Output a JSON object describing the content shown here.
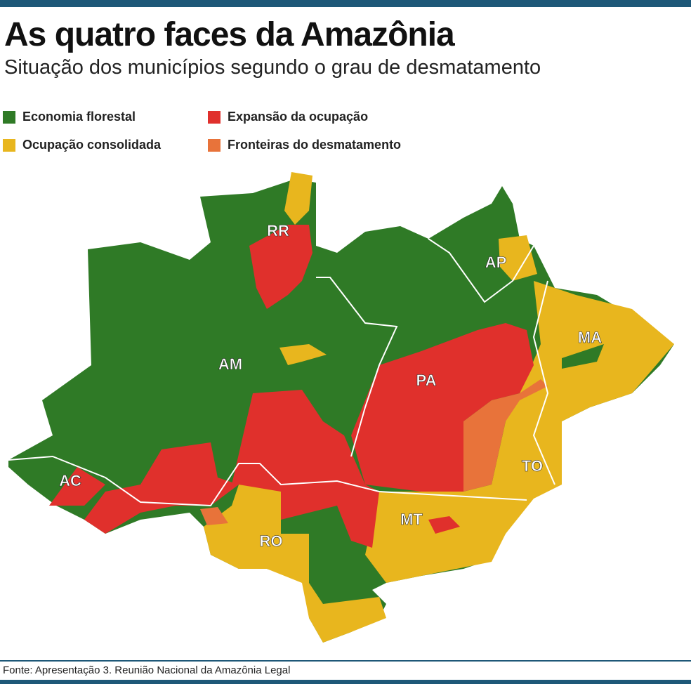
{
  "header": {
    "title": "As quatro faces da Amazônia",
    "subtitle": "Situação dos municípios segundo o grau de desmatamento"
  },
  "legend": [
    {
      "label": "Economia florestal",
      "color": "#2f7a26"
    },
    {
      "label": "Expansão da ocupação",
      "color": "#e0302c"
    },
    {
      "label": "Ocupação consolidada",
      "color": "#e8b61e"
    },
    {
      "label": "Fronteiras do desmatamento",
      "color": "#e8733a"
    }
  ],
  "map": {
    "labels": [
      "RR",
      "AP",
      "AM",
      "PA",
      "MA",
      "AC",
      "TO",
      "MT",
      "RO"
    ]
  },
  "source": "Fonte: Apresentação 3. Reunião Nacional da Amazônia Legal"
}
